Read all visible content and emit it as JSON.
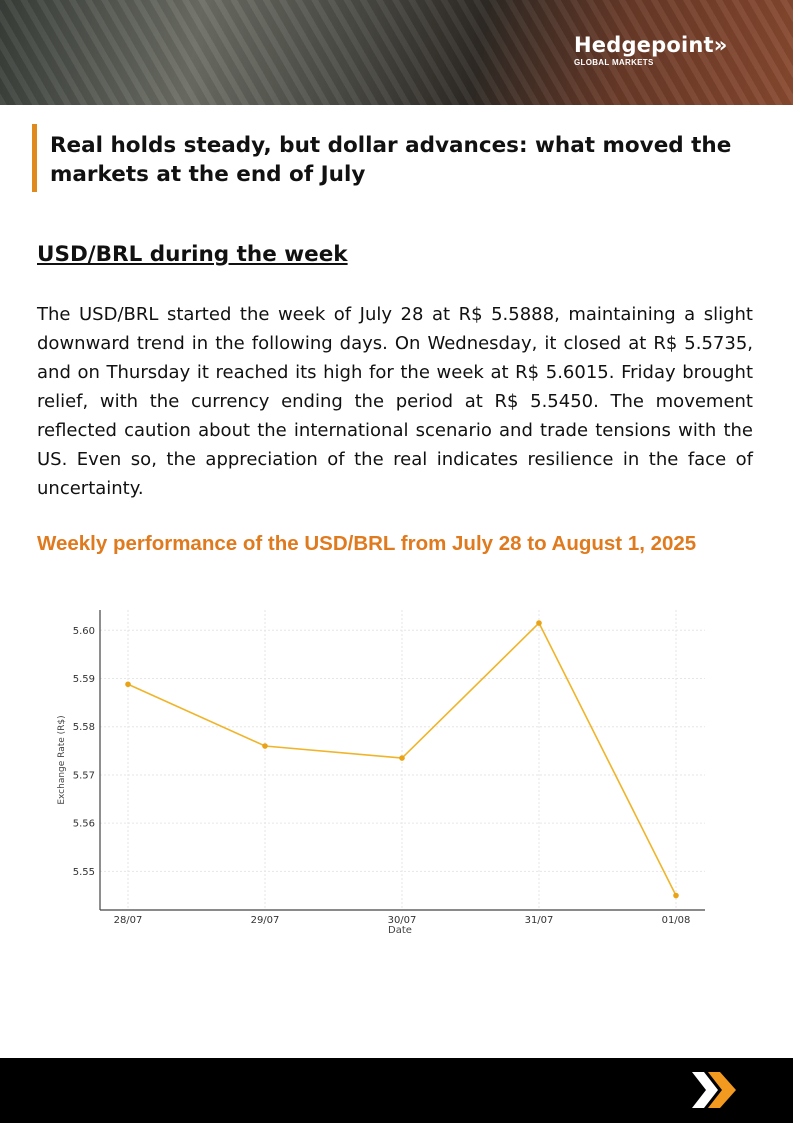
{
  "header": {
    "brand": "Hedgepoint",
    "brand_suffix": "»",
    "brand_sub": "GLOBAL MARKETS"
  },
  "title": "Real holds steady, but dollar advances: what moved the markets at the end of July",
  "section_heading": "USD/BRL during the week",
  "body": "The USD/BRL started the week of July 28 at R$ 5.5888, maintaining a slight downward trend in the following days. On Wednesday, it closed at R$ 5.5735, and on Thursday it reached its high for the week at R$ 5.6015. Friday brought relief, with the currency ending the period at R$ 5.5450. The movement reflected caution about the international scenario and trade tensions with the US. Even so, the appreciation of the real indicates resilience in the face of uncertainty.",
  "chart_caption": "Weekly performance of the USD/BRL from July 28 to August 1, 2025",
  "chart_data": {
    "type": "line",
    "title": "",
    "xlabel": "Date",
    "ylabel": "Exchange Rate (R$)",
    "categories": [
      "28/07",
      "29/07",
      "30/07",
      "31/07",
      "01/08"
    ],
    "values": [
      5.5888,
      5.576,
      5.5735,
      5.6015,
      5.545
    ],
    "yticks": [
      "5.55",
      "5.56",
      "5.57",
      "5.58",
      "5.59",
      "5.60"
    ],
    "ylim": [
      5.542,
      5.6042
    ],
    "grid": true,
    "color": "#f0b429"
  },
  "colors": {
    "accent": "#e08a1e",
    "line": "#f0b429"
  }
}
